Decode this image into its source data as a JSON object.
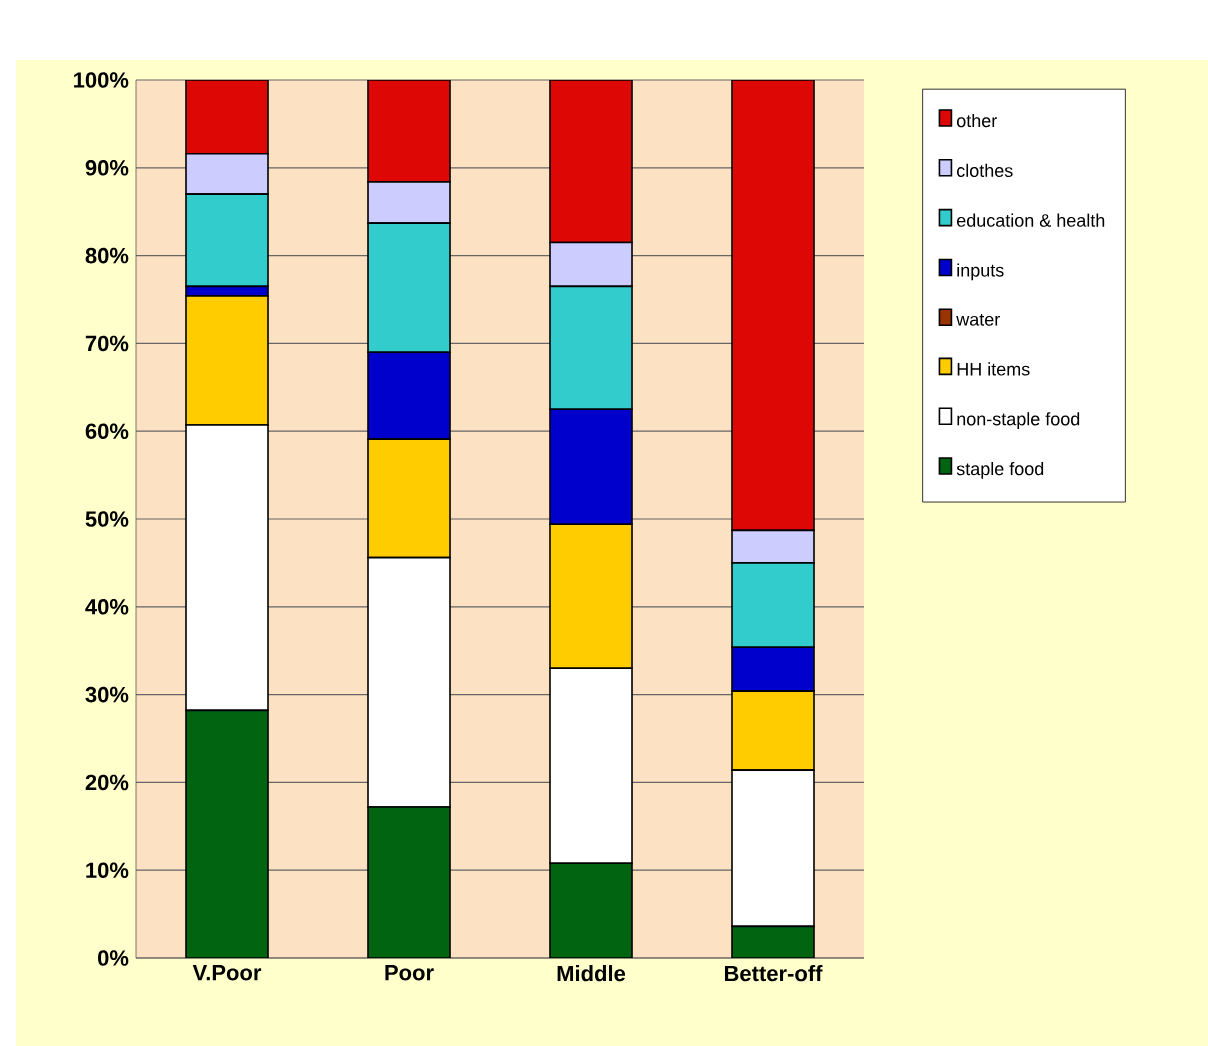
{
  "chart_data": {
    "type": "bar",
    "stacked": true,
    "categories": [
      "V.Poor",
      "Poor",
      "Middle",
      "Better-off"
    ],
    "series": [
      {
        "name": "staple food",
        "color": "#006411",
        "values": [
          28.2,
          17.2,
          10.8,
          3.6
        ]
      },
      {
        "name": "non-staple food",
        "color": "#ffffff",
        "values": [
          32.5,
          28.4,
          22.2,
          17.8
        ]
      },
      {
        "name": "HH items",
        "color": "#ffcc00",
        "values": [
          14.7,
          13.5,
          16.4,
          9.0
        ]
      },
      {
        "name": "water",
        "color": "#993300",
        "values": [
          0,
          0,
          0,
          0
        ]
      },
      {
        "name": "inputs",
        "color": "#0000cc",
        "values": [
          1.1,
          9.9,
          13.1,
          5.0
        ]
      },
      {
        "name": "education & health",
        "color": "#33cccc",
        "values": [
          10.5,
          14.7,
          14.0,
          9.6
        ]
      },
      {
        "name": "clothes",
        "color": "#ccccff",
        "values": [
          4.6,
          4.7,
          5.0,
          3.7
        ]
      },
      {
        "name": "other",
        "color": "#dd0806",
        "values": [
          8.4,
          11.6,
          18.5,
          51.3
        ]
      }
    ],
    "ylim": [
      0,
      100
    ],
    "yticks": [
      {
        "value": 0,
        "label": "0%"
      },
      {
        "value": 10,
        "label": "10%"
      },
      {
        "value": 20,
        "label": "20%"
      },
      {
        "value": 30,
        "label": "30%"
      },
      {
        "value": 40,
        "label": "40%"
      },
      {
        "value": 50,
        "label": "50%"
      },
      {
        "value": 60,
        "label": "60%"
      },
      {
        "value": 70,
        "label": "70%"
      },
      {
        "value": 80,
        "label": "80%"
      },
      {
        "value": 90,
        "label": "90%"
      },
      {
        "value": 100,
        "label": "100%"
      }
    ],
    "grid": "y",
    "legend": "right"
  }
}
